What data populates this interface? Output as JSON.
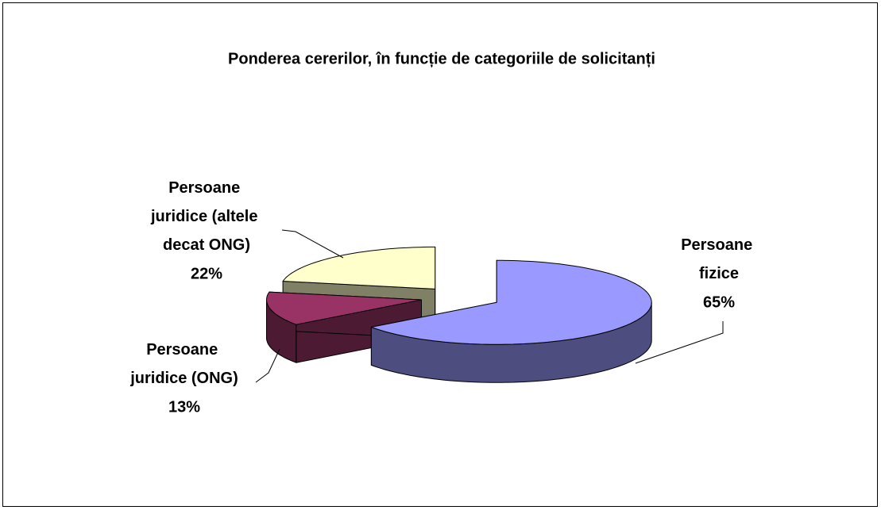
{
  "chart_data": {
    "type": "pie3d",
    "title": "Ponderea cererilor, în funcție de categoriile de solicitanți",
    "categories": [
      "Persoane fizice",
      "Persoane juridice (ONG)",
      "Persoane juridice (altele decat ONG)"
    ],
    "values": [
      65,
      13,
      22
    ],
    "value_labels": [
      "65%",
      "13%",
      "22%"
    ],
    "colors": [
      "#9999ff",
      "#993366",
      "#ffffcc"
    ]
  }
}
